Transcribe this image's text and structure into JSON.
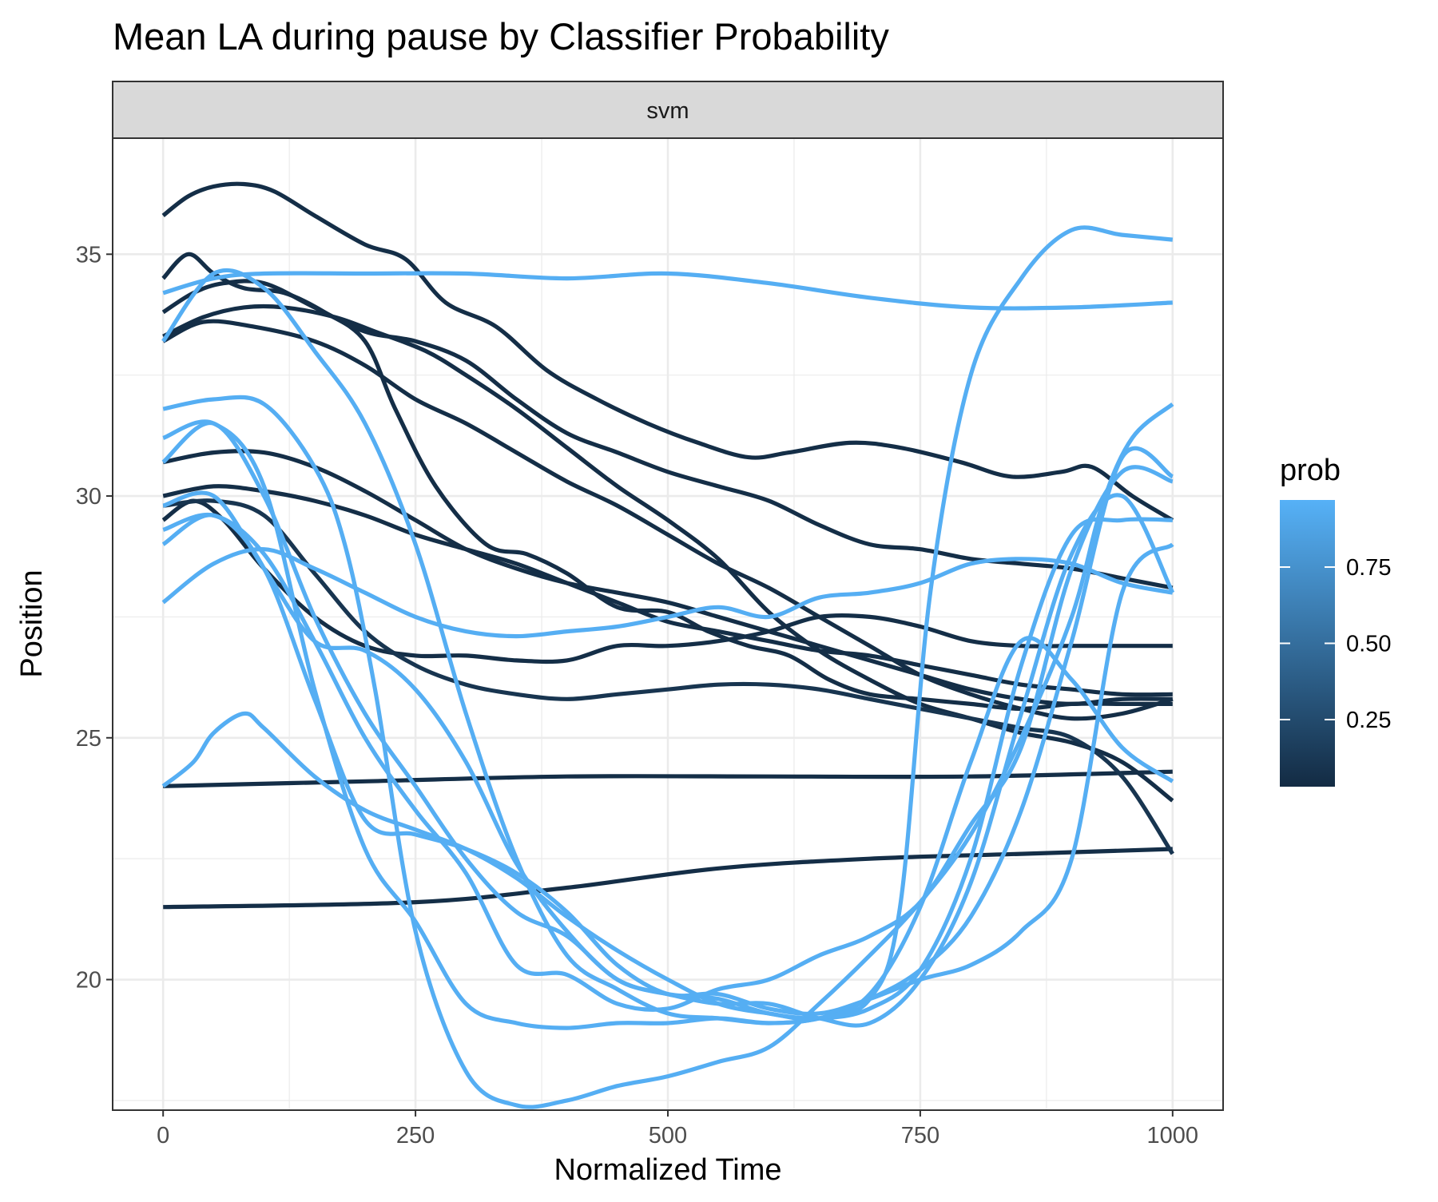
{
  "chart_data": {
    "type": "line",
    "title": "Mean LA during pause by Classifier Probability",
    "facet_label": "svm",
    "xlabel": "Normalized Time",
    "ylabel": "Position",
    "xlim": [
      -50,
      1050
    ],
    "ylim": [
      17.3,
      37.4
    ],
    "x_ticks": [
      0,
      250,
      500,
      750,
      1000
    ],
    "x_tick_labels": [
      "0",
      "250",
      "500",
      "750",
      "1000"
    ],
    "y_ticks": [
      20,
      25,
      30,
      35
    ],
    "y_tick_labels": [
      "20",
      "25",
      "30",
      "35"
    ],
    "grid": true,
    "legend": {
      "title": "prob",
      "placement": "right",
      "type": "colorbar",
      "range": [
        0.03,
        0.97
      ],
      "breaks": [
        0.25,
        0.5,
        0.75
      ],
      "break_labels": [
        "0.25",
        "0.50",
        "0.75"
      ],
      "color_low": "#132B43",
      "color_high": "#56B1F7"
    },
    "series": [
      {
        "prob": 0.05,
        "x": [
          0,
          25,
          50,
          80,
          110,
          150,
          200,
          240,
          280,
          330,
          380,
          430,
          480,
          530,
          580,
          620,
          680,
          730,
          790,
          840,
          890,
          920,
          960,
          1000
        ],
        "y": [
          35.8,
          36.2,
          36.4,
          36.45,
          36.3,
          35.8,
          35.2,
          34.9,
          34.0,
          33.5,
          32.6,
          32.0,
          31.5,
          31.1,
          30.8,
          30.9,
          31.1,
          31.0,
          30.7,
          30.4,
          30.5,
          30.6,
          30.0,
          29.5
        ]
      },
      {
        "prob": 0.05,
        "x": [
          0,
          25,
          50,
          80,
          120,
          160,
          200,
          230,
          270,
          320,
          360,
          400,
          450,
          500,
          540,
          580,
          620,
          660,
          700,
          750,
          800,
          850,
          900,
          950,
          1000
        ],
        "y": [
          34.5,
          35.0,
          34.6,
          34.3,
          34.2,
          33.8,
          33.2,
          31.8,
          30.2,
          29.0,
          28.8,
          28.4,
          27.7,
          27.6,
          27.2,
          26.9,
          26.7,
          26.2,
          25.9,
          25.8,
          25.7,
          25.6,
          25.7,
          25.7,
          25.7
        ]
      },
      {
        "prob": 0.05,
        "x": [
          0,
          30,
          60,
          100,
          150,
          200,
          250,
          300,
          350,
          400,
          450,
          500,
          550,
          600,
          650,
          700,
          750,
          800,
          850,
          900,
          950,
          1000
        ],
        "y": [
          33.8,
          34.2,
          34.4,
          34.4,
          33.9,
          33.4,
          33.2,
          32.8,
          32.0,
          31.3,
          30.9,
          30.5,
          30.2,
          29.9,
          29.4,
          29.0,
          28.9,
          28.7,
          28.6,
          28.5,
          28.3,
          28.1
        ]
      },
      {
        "prob": 0.05,
        "x": [
          0,
          40,
          80,
          120,
          170,
          210,
          260,
          300,
          350,
          400,
          450,
          500,
          550,
          600,
          650,
          700,
          750,
          800,
          850,
          900,
          950,
          1000
        ],
        "y": [
          33.3,
          33.7,
          33.9,
          33.9,
          33.7,
          33.4,
          33.0,
          32.5,
          31.8,
          31.0,
          30.2,
          29.5,
          28.7,
          27.6,
          26.8,
          26.2,
          25.7,
          25.4,
          25.1,
          24.9,
          24.5,
          23.7
        ]
      },
      {
        "prob": 0.05,
        "x": [
          0,
          40,
          90,
          150,
          200,
          250,
          300,
          350,
          400,
          450,
          500,
          550,
          600,
          650,
          700,
          750,
          800,
          850,
          900,
          950,
          1000
        ],
        "y": [
          33.2,
          33.6,
          33.5,
          33.2,
          32.7,
          32.0,
          31.5,
          30.9,
          30.3,
          29.8,
          29.2,
          28.6,
          28.1,
          27.5,
          26.9,
          26.3,
          25.9,
          25.6,
          25.4,
          25.5,
          25.8
        ]
      },
      {
        "prob": 0.05,
        "x": [
          0,
          50,
          100,
          150,
          200,
          250,
          300,
          350,
          400,
          450,
          500,
          550,
          600,
          650,
          700,
          750,
          800,
          850,
          900,
          950,
          1000
        ],
        "y": [
          30.7,
          30.9,
          30.9,
          30.6,
          30.1,
          29.5,
          28.9,
          28.5,
          28.2,
          28.0,
          27.8,
          27.5,
          27.2,
          26.9,
          26.6,
          26.3,
          26.0,
          25.8,
          25.7,
          25.8,
          25.8
        ]
      },
      {
        "prob": 0.05,
        "x": [
          0,
          50,
          100,
          150,
          200,
          250,
          300,
          350,
          400,
          450,
          500,
          550,
          600,
          650,
          700,
          750,
          800,
          850,
          900,
          950,
          1000
        ],
        "y": [
          30.0,
          30.2,
          30.1,
          29.9,
          29.6,
          29.2,
          28.9,
          28.6,
          28.2,
          27.8,
          27.4,
          27.2,
          27.0,
          26.8,
          26.7,
          26.5,
          26.3,
          26.1,
          26.0,
          25.9,
          25.9
        ]
      },
      {
        "prob": 0.05,
        "x": [
          0,
          30,
          60,
          100,
          150,
          200,
          250,
          300,
          350,
          400,
          450,
          500,
          550,
          600,
          650,
          700,
          750,
          800,
          850,
          900,
          950,
          1000
        ],
        "y": [
          29.5,
          29.9,
          29.5,
          28.5,
          27.5,
          26.9,
          26.7,
          26.7,
          26.6,
          26.6,
          26.9,
          26.9,
          27.0,
          27.2,
          27.5,
          27.5,
          27.3,
          27.0,
          26.9,
          26.9,
          26.9,
          26.9
        ]
      },
      {
        "prob": 0.05,
        "x": [
          0,
          200,
          400,
          600,
          800,
          1000
        ],
        "y": [
          24.0,
          24.1,
          24.2,
          24.2,
          24.2,
          24.3
        ]
      },
      {
        "prob": 0.05,
        "x": [
          0,
          250,
          400,
          550,
          700,
          850,
          1000
        ],
        "y": [
          21.5,
          21.6,
          21.9,
          22.3,
          22.5,
          22.6,
          22.7
        ]
      },
      {
        "prob": 0.1,
        "x": [
          0,
          50,
          100,
          150,
          200,
          250,
          300,
          350,
          400,
          450,
          500,
          550,
          600,
          650,
          700,
          750,
          800,
          850,
          900,
          950,
          1000
        ],
        "y": [
          29.8,
          29.9,
          29.6,
          28.4,
          27.2,
          26.5,
          26.1,
          25.9,
          25.8,
          25.9,
          26.0,
          26.1,
          26.1,
          26.0,
          25.8,
          25.6,
          25.4,
          25.2,
          25.0,
          24.2,
          22.6
        ]
      },
      {
        "prob": 0.95,
        "x": [
          0,
          50,
          100,
          200,
          300,
          400,
          500,
          600,
          700,
          800,
          900,
          1000
        ],
        "y": [
          34.2,
          34.5,
          34.6,
          34.6,
          34.6,
          34.5,
          34.6,
          34.4,
          34.1,
          33.9,
          33.9,
          34.0
        ]
      },
      {
        "prob": 0.95,
        "x": [
          0,
          50,
          100,
          150,
          200,
          250,
          300,
          350,
          400,
          450,
          500,
          550,
          600,
          650,
          700,
          730,
          760,
          800,
          850,
          900,
          950,
          1000
        ],
        "y": [
          33.2,
          34.6,
          34.3,
          33.0,
          31.5,
          29.0,
          25.5,
          22.5,
          20.5,
          19.8,
          19.3,
          19.2,
          19.1,
          19.2,
          19.6,
          21.5,
          28.0,
          32.5,
          34.5,
          35.5,
          35.4,
          35.3
        ]
      },
      {
        "prob": 0.95,
        "x": [
          0,
          50,
          100,
          150,
          180,
          210,
          250,
          300,
          350,
          400,
          450,
          500,
          550,
          600,
          650,
          700,
          750,
          800,
          850,
          900,
          930,
          960,
          1000
        ],
        "y": [
          31.8,
          32.0,
          31.9,
          30.6,
          29.0,
          26.0,
          21.0,
          18.1,
          17.4,
          17.5,
          17.8,
          18.0,
          18.3,
          18.6,
          19.5,
          20.5,
          21.6,
          23.0,
          25.0,
          27.5,
          29.8,
          31.2,
          31.9
        ]
      },
      {
        "prob": 0.95,
        "x": [
          0,
          50,
          100,
          150,
          200,
          250,
          300,
          350,
          400,
          450,
          500,
          550,
          600,
          650,
          700,
          750,
          800,
          850,
          900,
          950,
          1000
        ],
        "y": [
          31.2,
          31.5,
          30.2,
          26.0,
          22.7,
          21.2,
          19.5,
          19.1,
          19.0,
          19.1,
          19.1,
          19.2,
          19.1,
          19.2,
          19.6,
          20.2,
          21.3,
          23.5,
          27.0,
          30.8,
          30.4
        ]
      },
      {
        "prob": 0.95,
        "x": [
          0,
          50,
          100,
          150,
          200,
          250,
          300,
          350,
          400,
          450,
          500,
          550,
          600,
          650,
          700,
          750,
          800,
          850,
          900,
          950,
          1000
        ],
        "y": [
          30.7,
          31.5,
          30.0,
          27.5,
          25.5,
          24.0,
          22.5,
          21.4,
          20.9,
          20.0,
          19.7,
          19.6,
          19.3,
          19.2,
          19.4,
          20.2,
          22.5,
          26.5,
          29.2,
          29.5,
          29.5
        ]
      },
      {
        "prob": 0.95,
        "x": [
          0,
          50,
          100,
          150,
          200,
          250,
          300,
          350,
          400,
          450,
          500,
          550,
          600,
          650,
          700,
          750,
          800,
          850,
          900,
          950,
          1000
        ],
        "y": [
          29.8,
          30.0,
          28.5,
          27.0,
          26.8,
          26.0,
          24.5,
          22.4,
          21.0,
          20.0,
          19.7,
          19.5,
          19.5,
          19.2,
          19.1,
          20.0,
          22.0,
          25.5,
          28.8,
          30.0,
          28.0
        ]
      },
      {
        "prob": 0.95,
        "x": [
          0,
          50,
          100,
          150,
          200,
          250,
          300,
          350,
          400,
          450,
          500,
          550,
          600,
          650,
          700,
          750,
          800,
          850,
          900,
          950,
          1000
        ],
        "y": [
          29.3,
          29.6,
          28.8,
          27.0,
          25.0,
          23.5,
          22.2,
          20.3,
          20.1,
          19.5,
          19.4,
          19.8,
          20.0,
          20.5,
          20.9,
          21.6,
          23.2,
          24.8,
          28.5,
          30.5,
          30.3
        ]
      },
      {
        "prob": 0.95,
        "x": [
          0,
          50,
          100,
          150,
          200,
          250,
          300,
          350,
          400,
          450,
          500,
          550,
          600,
          650,
          700,
          750,
          800,
          850,
          900,
          950,
          1000
        ],
        "y": [
          29.0,
          29.6,
          28.5,
          25.8,
          23.3,
          23.0,
          22.7,
          22.2,
          21.4,
          20.3,
          19.7,
          19.7,
          19.4,
          19.3,
          19.6,
          20.0,
          20.3,
          21.0,
          22.5,
          28.0,
          29.0
        ]
      },
      {
        "prob": 0.95,
        "x": [
          0,
          50,
          100,
          150,
          200,
          250,
          300,
          350,
          400,
          450,
          500,
          550,
          600,
          650,
          700,
          750,
          800,
          850,
          900,
          950,
          1000
        ],
        "y": [
          27.8,
          28.6,
          28.9,
          28.5,
          28.0,
          27.5,
          27.2,
          27.1,
          27.2,
          27.3,
          27.5,
          27.7,
          27.5,
          27.9,
          28.0,
          28.2,
          28.6,
          28.7,
          28.6,
          28.2,
          28.0
        ]
      },
      {
        "prob": 0.95,
        "x": [
          0,
          30,
          50,
          80,
          100,
          150,
          200,
          250,
          300,
          350,
          400,
          450,
          500,
          550,
          600,
          650,
          700,
          750,
          800,
          850,
          900,
          950,
          1000
        ],
        "y": [
          24.0,
          24.5,
          25.1,
          25.5,
          25.2,
          24.2,
          23.5,
          23.1,
          22.7,
          22.1,
          21.3,
          20.6,
          20.0,
          19.5,
          19.3,
          19.2,
          19.7,
          21.5,
          24.5,
          27.0,
          26.2,
          24.8,
          24.1
        ]
      }
    ]
  }
}
